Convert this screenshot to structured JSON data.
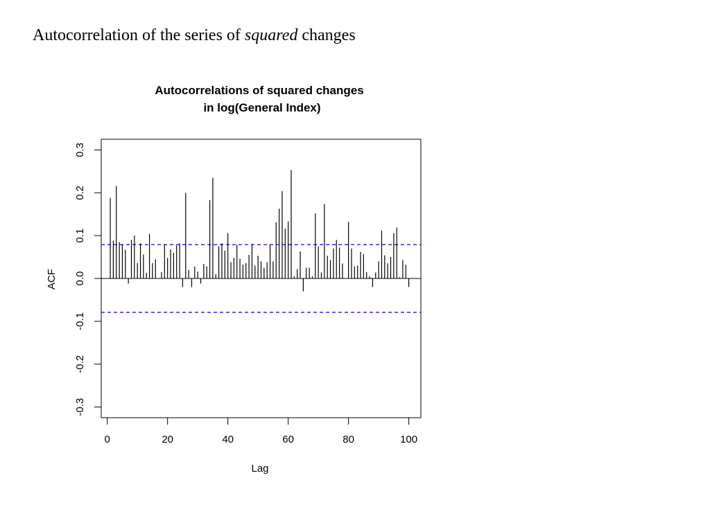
{
  "slide": {
    "heading_prefix": "Autocorrelation of the series of ",
    "heading_emphasis": "squared",
    "heading_suffix": " changes"
  },
  "chart_data": {
    "type": "bar",
    "title": [
      "Autocorrelations of squared changes",
      "in log(General Index)"
    ],
    "xlabel": "Lag",
    "ylabel": "ACF",
    "xlim": [
      -2,
      104
    ],
    "ylim": [
      -0.325,
      0.325
    ],
    "xticks": [
      0,
      20,
      40,
      60,
      80,
      100
    ],
    "xtick_labels": [
      "0",
      "20",
      "40",
      "60",
      "80",
      "100"
    ],
    "yticks": [
      -0.3,
      -0.2,
      -0.1,
      0.0,
      0.1,
      0.2,
      0.3
    ],
    "ytick_labels": [
      "-0.3",
      "-0.2",
      "-0.1",
      "0.0",
      "0.1",
      "0.2",
      "0.3"
    ],
    "confidence_band": 0.079,
    "colors": {
      "bars": "#000000",
      "band": "#0000cc"
    },
    "lags": [
      1,
      2,
      3,
      4,
      5,
      6,
      7,
      8,
      9,
      10,
      11,
      12,
      13,
      14,
      15,
      16,
      17,
      18,
      19,
      20,
      21,
      22,
      23,
      24,
      25,
      26,
      27,
      28,
      29,
      30,
      31,
      32,
      33,
      34,
      35,
      36,
      37,
      38,
      39,
      40,
      41,
      42,
      43,
      44,
      45,
      46,
      47,
      48,
      49,
      50,
      51,
      52,
      53,
      54,
      55,
      56,
      57,
      58,
      59,
      60,
      61,
      62,
      63,
      64,
      65,
      66,
      67,
      68,
      69,
      70,
      71,
      72,
      73,
      74,
      75,
      76,
      77,
      78,
      79,
      80,
      81,
      82,
      83,
      84,
      85,
      86,
      87,
      88,
      89,
      90,
      91,
      92,
      93,
      94,
      95,
      96,
      97,
      98,
      99,
      100
    ],
    "values": [
      0.188,
      0.088,
      0.216,
      0.085,
      0.08,
      0.067,
      -0.012,
      0.09,
      0.1,
      0.036,
      0.082,
      0.056,
      0.013,
      0.104,
      0.036,
      0.045,
      0.0,
      0.015,
      0.08,
      0.048,
      0.068,
      0.06,
      0.077,
      0.082,
      -0.02,
      0.2,
      0.02,
      -0.02,
      0.028,
      0.016,
      -0.012,
      0.034,
      0.028,
      0.183,
      0.235,
      0.01,
      0.075,
      0.082,
      0.065,
      0.106,
      0.038,
      0.048,
      0.079,
      0.046,
      0.032,
      0.036,
      0.055,
      0.08,
      0.03,
      0.053,
      0.04,
      0.025,
      0.038,
      0.08,
      0.04,
      0.131,
      0.163,
      0.204,
      0.116,
      0.133,
      0.253,
      0.005,
      0.022,
      0.063,
      -0.03,
      0.025,
      0.025,
      0.005,
      0.152,
      0.075,
      0.014,
      0.174,
      0.053,
      0.043,
      0.07,
      0.09,
      0.072,
      0.035,
      0.0,
      0.132,
      0.07,
      0.028,
      0.03,
      0.062,
      0.057,
      0.015,
      0.005,
      -0.02,
      0.014,
      0.04,
      0.112,
      0.054,
      0.035,
      0.05,
      0.106,
      0.119,
      0.003,
      0.043,
      0.032,
      -0.02
    ]
  }
}
